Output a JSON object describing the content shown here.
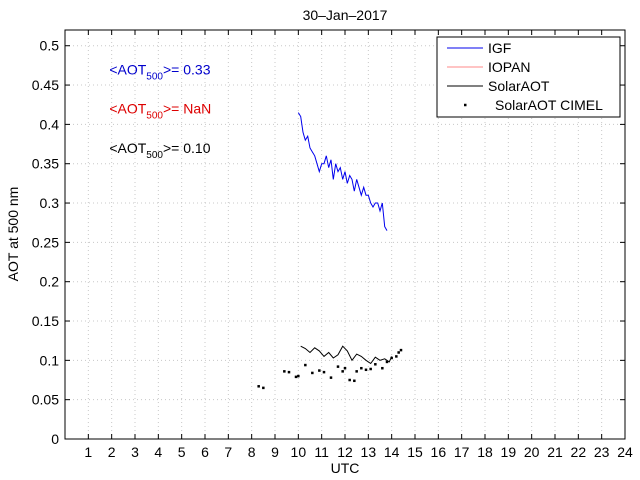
{
  "chart_data": {
    "type": "line",
    "title": "30–Jan–2017",
    "xlabel": "UTC",
    "ylabel": "AOT at 500 nm",
    "xlim": [
      0,
      24
    ],
    "ylim": [
      0,
      0.52
    ],
    "xticks": [
      "1",
      "2",
      "3",
      "4",
      "5",
      "6",
      "7",
      "8",
      "9",
      "10",
      "11",
      "12",
      "13",
      "14",
      "15",
      "16",
      "17",
      "18",
      "19",
      "20",
      "21",
      "22",
      "23",
      "24"
    ],
    "yticks": [
      "0",
      "0.05",
      "0.1",
      "0.15",
      "0.2",
      "0.25",
      "0.3",
      "0.35",
      "0.4",
      "0.45",
      "0.5"
    ],
    "grid": true,
    "legend_position": "top-right",
    "annotations": [
      {
        "prefix": "<AOT",
        "sub": "500",
        "suffix": ">= 0.33",
        "color": "#0000cc",
        "x": 1.9,
        "y": 0.47
      },
      {
        "prefix": "<AOT",
        "sub": "500",
        "suffix": ">=  NaN",
        "color": "#dd0000",
        "x": 1.9,
        "y": 0.42
      },
      {
        "prefix": "<AOT",
        "sub": "500",
        "suffix": ">= 0.10",
        "color": "#000000",
        "x": 1.9,
        "y": 0.37
      }
    ],
    "series": [
      {
        "name": "IGF",
        "color": "#0000ee",
        "style": "line",
        "x": [
          10.0,
          10.1,
          10.2,
          10.3,
          10.4,
          10.5,
          10.6,
          10.7,
          10.8,
          10.9,
          11.0,
          11.1,
          11.2,
          11.3,
          11.4,
          11.5,
          11.6,
          11.7,
          11.8,
          11.9,
          12.0,
          12.1,
          12.2,
          12.3,
          12.4,
          12.5,
          12.6,
          12.7,
          12.8,
          12.9,
          13.0,
          13.1,
          13.2,
          13.3,
          13.4,
          13.5,
          13.6,
          13.7,
          13.8
        ],
        "values": [
          0.415,
          0.41,
          0.39,
          0.38,
          0.385,
          0.37,
          0.365,
          0.36,
          0.35,
          0.34,
          0.35,
          0.35,
          0.36,
          0.345,
          0.355,
          0.33,
          0.35,
          0.34,
          0.345,
          0.33,
          0.34,
          0.325,
          0.335,
          0.33,
          0.315,
          0.33,
          0.32,
          0.31,
          0.32,
          0.31,
          0.31,
          0.3,
          0.295,
          0.3,
          0.3,
          0.29,
          0.3,
          0.27,
          0.265
        ]
      },
      {
        "name": "IOPAN",
        "color": "#ff8888",
        "style": "line",
        "x": [],
        "values": []
      },
      {
        "name": "SolarAOT",
        "color": "#000000",
        "style": "line",
        "x": [
          10.1,
          10.3,
          10.5,
          10.7,
          10.9,
          11.1,
          11.3,
          11.5,
          11.7,
          11.9,
          12.1,
          12.3,
          12.5,
          12.7,
          12.9,
          13.1,
          13.3,
          13.5,
          13.7,
          13.9,
          14.0
        ],
        "values": [
          0.118,
          0.115,
          0.11,
          0.116,
          0.112,
          0.105,
          0.11,
          0.103,
          0.107,
          0.118,
          0.112,
          0.1,
          0.108,
          0.105,
          0.1,
          0.096,
          0.104,
          0.1,
          0.102,
          0.098,
          0.105
        ]
      },
      {
        "name": "SolarAOT CIMEL",
        "color": "#000000",
        "style": "points",
        "x": [
          8.3,
          8.5,
          9.4,
          9.6,
          9.9,
          10.0,
          10.3,
          10.6,
          10.9,
          11.1,
          11.4,
          11.7,
          11.9,
          12.0,
          12.2,
          12.4,
          12.5,
          12.7,
          12.9,
          13.1,
          13.3,
          13.6,
          13.8,
          14.0,
          14.2,
          14.3,
          14.4
        ],
        "values": [
          0.067,
          0.065,
          0.086,
          0.085,
          0.079,
          0.08,
          0.094,
          0.084,
          0.087,
          0.085,
          0.078,
          0.092,
          0.086,
          0.09,
          0.075,
          0.074,
          0.086,
          0.09,
          0.088,
          0.089,
          0.095,
          0.09,
          0.098,
          0.103,
          0.105,
          0.11,
          0.113
        ]
      }
    ]
  }
}
